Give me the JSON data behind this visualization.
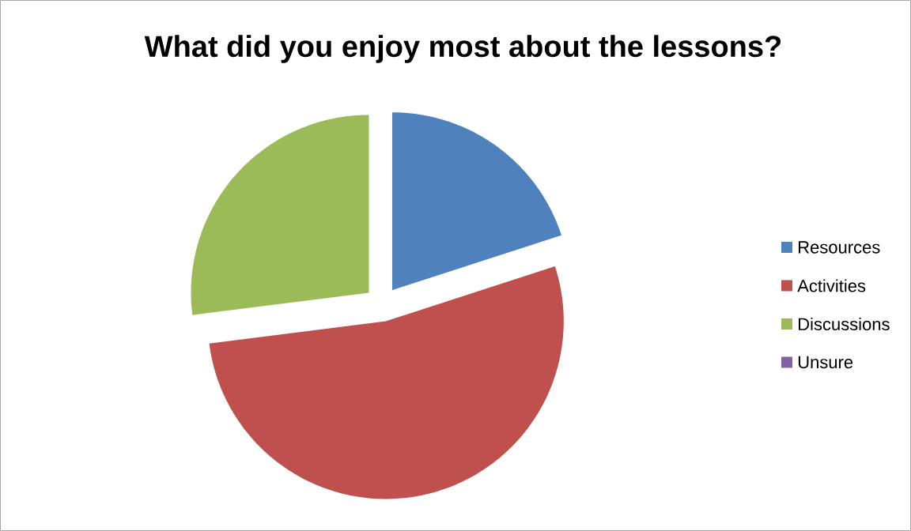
{
  "chart_data": {
    "type": "pie",
    "title": "What did you enjoy most about the lessons?",
    "categories": [
      "Resources",
      "Activities",
      "Discussions",
      "Unsure"
    ],
    "values": [
      20,
      53,
      27,
      0
    ],
    "colors": [
      "#4f81bd",
      "#c0504d",
      "#9bbb59",
      "#8064a2"
    ],
    "legend": "right"
  }
}
